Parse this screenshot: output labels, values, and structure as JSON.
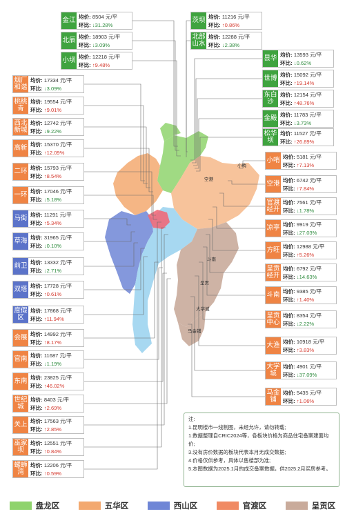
{
  "map": {
    "districts": [
      {
        "id": "panlong",
        "label": "盘龙区",
        "color": "#8fd36d"
      },
      {
        "id": "wuhua",
        "label": "五华区",
        "color": "#f3a970"
      },
      {
        "id": "xishan",
        "label": "西山区",
        "color": "#6f86d6"
      },
      {
        "id": "guandu",
        "label": "官渡区",
        "color": "#f08a63"
      },
      {
        "id": "chenggong",
        "label": "呈贡区",
        "color": "#c9ab9b"
      }
    ],
    "place_labels": [
      "大学城",
      "斗南",
      "马金铺",
      "空港",
      "小哨",
      "呈贡"
    ]
  },
  "price_label": "均价:",
  "mom_label": "环比:",
  "plates": [
    {
      "name": "金江",
      "price": "8504 元/平",
      "mom": "↓31.28%",
      "dir": "down",
      "district": "panlong"
    },
    {
      "name": "北辰",
      "price": "18903 元/平",
      "mom": "↓3.09%",
      "dir": "down",
      "district": "panlong"
    },
    {
      "name": "小坝",
      "price": "12218 元/平",
      "mom": "↑9.48%",
      "dir": "up",
      "district": "panlong"
    },
    {
      "name": "茨坝",
      "price": "11216 元/平",
      "mom": "↑0.86%",
      "dir": "up",
      "district": "panlong"
    },
    {
      "name": "北部山水",
      "price": "12288 元/平",
      "mom": "↓2.38%",
      "dir": "down",
      "district": "panlong"
    },
    {
      "name": "昙华",
      "price": "13593 元/平",
      "mom": "↓0.62%",
      "dir": "down",
      "district": "panlong"
    },
    {
      "name": "世博",
      "price": "15092 元/平",
      "mom": "↑19.14%",
      "dir": "up",
      "district": "panlong"
    },
    {
      "name": "东白沙",
      "price": "12154 元/平",
      "mom": "↑48.76%",
      "dir": "up",
      "district": "panlong"
    },
    {
      "name": "金殿",
      "price": "11783 元/平",
      "mom": "↓3.73%",
      "dir": "down",
      "district": "panlong"
    },
    {
      "name": "松华坝",
      "price": "11527 元/平",
      "mom": "↑26.89%",
      "dir": "up",
      "district": "panlong"
    },
    {
      "name": "烟厂和谐",
      "price": "17334 元/平",
      "mom": "↓3.09%",
      "dir": "down",
      "district": "wuhua"
    },
    {
      "name": "桃桃青",
      "price": "19554 元/平",
      "mom": "↑9.01%",
      "dir": "up",
      "district": "wuhua"
    },
    {
      "name": "西北新城",
      "price": "12742 元/平",
      "mom": "↓9.22%",
      "dir": "down",
      "district": "wuhua"
    },
    {
      "name": "高新",
      "price": "15370 元/平",
      "mom": "↑12.09%",
      "dir": "up",
      "district": "wuhua"
    },
    {
      "name": "二环",
      "price": "15793 元/平",
      "mom": "↑8.54%",
      "dir": "up",
      "district": "guandu"
    },
    {
      "name": "一环",
      "price": "17046 元/平",
      "mom": "↓5.18%",
      "dir": "down",
      "district": "guandu"
    },
    {
      "name": "马街",
      "price": "11291 元/平",
      "mom": "↑5.34%",
      "dir": "up",
      "district": "xishan"
    },
    {
      "name": "草海",
      "price": "31965 元/平",
      "mom": "↓0.10%",
      "dir": "down",
      "district": "xishan"
    },
    {
      "name": "前卫",
      "price": "13332 元/平",
      "mom": "↓2.71%",
      "dir": "down",
      "district": "xishan"
    },
    {
      "name": "双塔",
      "price": "17728 元/平",
      "mom": "↑0.61%",
      "dir": "up",
      "district": "xishan"
    },
    {
      "name": "度假区",
      "price": "17868 元/平",
      "mom": "↑11.94%",
      "dir": "up",
      "district": "xishan"
    },
    {
      "name": "会展",
      "price": "14992 元/平",
      "mom": "↑8.17%",
      "dir": "up",
      "district": "guandu"
    },
    {
      "name": "官南",
      "price": "11687 元/平",
      "mom": "↓1.19%",
      "dir": "down",
      "district": "guandu"
    },
    {
      "name": "东南",
      "price": "23825 元/平",
      "mom": "↑46.02%",
      "dir": "up",
      "district": "guandu"
    },
    {
      "name": "世纪城",
      "price": "8403 元/平",
      "mom": "↑2.69%",
      "dir": "up",
      "district": "guandu"
    },
    {
      "name": "关上",
      "price": "17563 元/平",
      "mom": "↑2.85%",
      "dir": "up",
      "district": "guandu"
    },
    {
      "name": "巫家坝",
      "price": "12551 元/平",
      "mom": "↑0.84%",
      "dir": "up",
      "district": "guandu"
    },
    {
      "name": "螺蛳湾",
      "price": "12206 元/平",
      "mom": "↑0.59%",
      "dir": "up",
      "district": "guandu"
    },
    {
      "name": "小哨",
      "price": "5181 元/平",
      "mom": "↑7.13%",
      "dir": "up",
      "district": "guandu"
    },
    {
      "name": "空港",
      "price": "6742 元/平",
      "mom": "↑7.84%",
      "dir": "up",
      "district": "guandu"
    },
    {
      "name": "官渡经开",
      "price": "7561 元/平",
      "mom": "↓1.78%",
      "dir": "down",
      "district": "guandu"
    },
    {
      "name": "凉亭",
      "price": "9919 元/平",
      "mom": "↓27.03%",
      "dir": "down",
      "district": "guandu"
    },
    {
      "name": "方旺",
      "price": "12988 元/平",
      "mom": "↑5.26%",
      "dir": "up",
      "district": "guandu"
    },
    {
      "name": "呈贡经开",
      "price": "6792 元/平",
      "mom": "↓14.63%",
      "dir": "down",
      "district": "guandu"
    },
    {
      "name": "斗南",
      "price": "9385 元/平",
      "mom": "↑1.40%",
      "dir": "up",
      "district": "guandu"
    },
    {
      "name": "呈贡中心",
      "price": "8354 元/平",
      "mom": "↓2.22%",
      "dir": "down",
      "district": "guandu"
    },
    {
      "name": "大渔",
      "price": "10918 元/平",
      "mom": "↑3.83%",
      "dir": "up",
      "district": "guandu"
    },
    {
      "name": "大学城",
      "price": "4901 元/平",
      "mom": "↓37.09%",
      "dir": "down",
      "district": "guandu"
    },
    {
      "name": "马金铺",
      "price": "5435 元/平",
      "mom": "↑1.06%",
      "dir": "up",
      "district": "guandu"
    }
  ],
  "notes": {
    "title": "注:",
    "lines": [
      "1.昆明楼市一线制图，未经允许，请勿转载;",
      "1.数据整理自CRIC2024等，各板块价格为商品住宅备案建面均价;",
      "3.没有房价数据的板块代表本月无成交数据;",
      "4.价格仅供参考，具体以售楼部为准;",
      "5.本图数据为2025.1月的成交备案数据，供2025.2月买房参考。"
    ]
  }
}
